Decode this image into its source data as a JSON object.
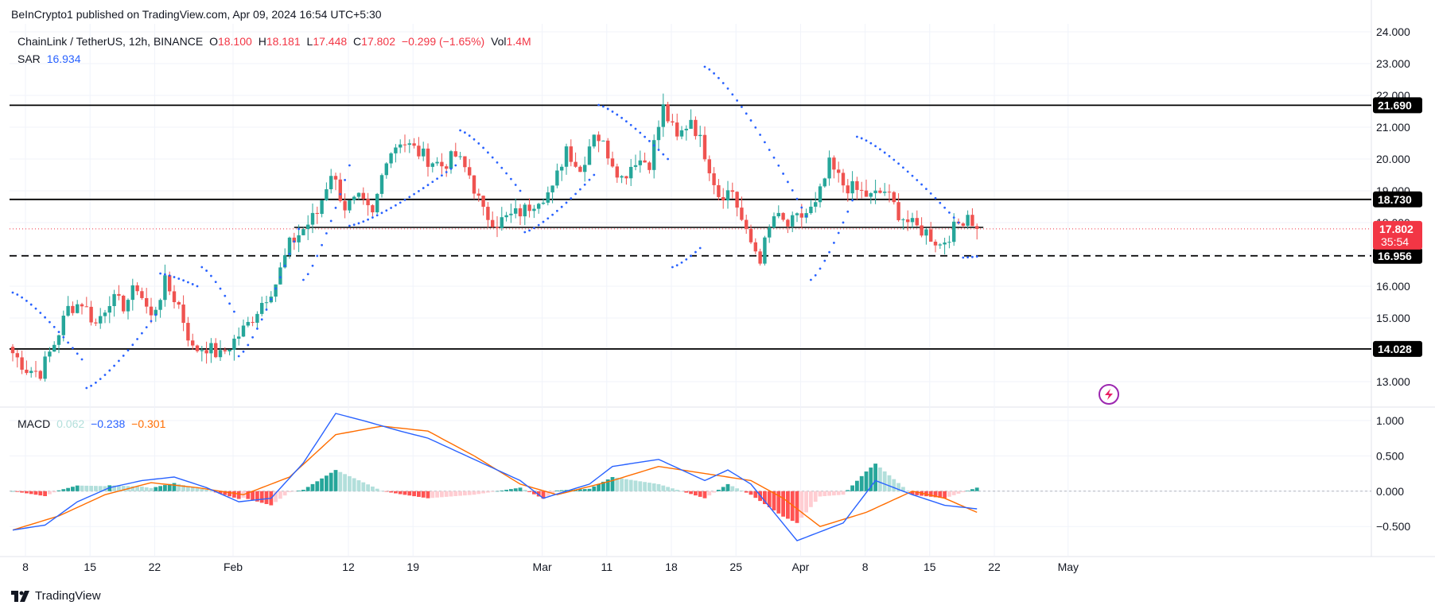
{
  "header": {
    "published": "BeInCrypto1 published on TradingView.com, Apr 09, 2024 16:54 UTC+5:30"
  },
  "legend": {
    "symbol": "ChainLink / TetherUS, 12h, BINANCE",
    "o_label": "O",
    "o": "18.100",
    "h_label": "H",
    "h": "18.181",
    "l_label": "L",
    "l": "17.448",
    "c_label": "C",
    "c": "17.802",
    "change": "−0.299 (−1.65%)",
    "vol_label": "Vol",
    "vol": "1.4M",
    "sar_label": "SAR",
    "sar": "16.934",
    "macd_label": "MACD",
    "macd_hist": "0.062",
    "macd_line": "−0.238",
    "macd_signal": "−0.301"
  },
  "footer": {
    "brand": "TradingView"
  },
  "colors": {
    "up": "#26a69a",
    "down": "#ef5350",
    "sar": "#2962ff",
    "macd": "#2962ff",
    "signal": "#ff6d00",
    "hist_up": "#26a69a",
    "hist_up_light": "#b2dfdb",
    "hist_down": "#ff5252",
    "hist_down_light": "#ffcdd2",
    "level": "#000000",
    "current": "#f23645"
  },
  "chart_data": {
    "type": "candlestick",
    "price_axis": {
      "ticks": [
        "24.000",
        "23.000",
        "22.000",
        "21.000",
        "20.000",
        "19.000",
        "18.000",
        "17.000",
        "16.000",
        "15.000",
        "14.000",
        "13.000"
      ],
      "range": [
        12.5,
        24.0
      ]
    },
    "macd_axis": {
      "ticks": [
        "1.000",
        "0.500",
        "0.000",
        "−0.500"
      ],
      "range": [
        -0.7,
        1.1
      ]
    },
    "x_ticks": [
      "8",
      "15",
      "22",
      "Feb",
      "12",
      "19",
      "Mar",
      "11",
      "18",
      "25",
      "Apr",
      "8",
      "15",
      "22",
      "May"
    ],
    "levels": [
      {
        "value": 21.69,
        "label": "21.690",
        "style": "solid"
      },
      {
        "value": 18.73,
        "label": "18.730",
        "style": "solid"
      },
      {
        "value": 16.956,
        "label": "16.956",
        "style": "dashed"
      },
      {
        "value": 14.028,
        "label": "14.028",
        "style": "solid"
      }
    ],
    "current_price": {
      "value": 17.802,
      "label": "17.802",
      "countdown": "35:54"
    },
    "price_waypoints": [
      [
        0,
        13.9
      ],
      [
        3,
        13.4
      ],
      [
        6,
        13.3
      ],
      [
        9,
        14.2
      ],
      [
        12,
        15.3
      ],
      [
        15,
        15.5
      ],
      [
        18,
        14.8
      ],
      [
        21,
        15.6
      ],
      [
        24,
        15.4
      ],
      [
        27,
        16.0
      ],
      [
        30,
        15.0
      ],
      [
        33,
        16.1
      ],
      [
        36,
        15.4
      ],
      [
        39,
        14.0
      ],
      [
        42,
        14.1
      ],
      [
        45,
        13.8
      ],
      [
        48,
        14.3
      ],
      [
        51,
        14.8
      ],
      [
        54,
        15.5
      ],
      [
        57,
        16.1
      ],
      [
        60,
        17.3
      ],
      [
        63,
        17.8
      ],
      [
        66,
        18.3
      ],
      [
        69,
        19.6
      ],
      [
        72,
        18.5
      ],
      [
        75,
        18.7
      ],
      [
        78,
        18.2
      ],
      [
        81,
        20.1
      ],
      [
        84,
        20.6
      ],
      [
        87,
        20.3
      ],
      [
        90,
        20.0
      ],
      [
        93,
        19.8
      ],
      [
        96,
        20.1
      ],
      [
        99,
        19.5
      ],
      [
        102,
        18.3
      ],
      [
        105,
        18.0
      ],
      [
        108,
        18.2
      ],
      [
        111,
        18.4
      ],
      [
        114,
        18.8
      ],
      [
        117,
        19.0
      ],
      [
        120,
        20.4
      ],
      [
        123,
        19.6
      ],
      [
        126,
        20.9
      ],
      [
        129,
        20.2
      ],
      [
        132,
        19.4
      ],
      [
        135,
        20.0
      ],
      [
        138,
        19.9
      ],
      [
        141,
        21.6
      ],
      [
        144,
        20.6
      ],
      [
        147,
        21.3
      ],
      [
        150,
        20.2
      ],
      [
        153,
        18.9
      ],
      [
        156,
        19.0
      ],
      [
        159,
        17.6
      ],
      [
        162,
        16.9
      ],
      [
        165,
        18.2
      ],
      [
        168,
        17.9
      ],
      [
        171,
        18.2
      ],
      [
        174,
        18.5
      ],
      [
        177,
        19.8
      ],
      [
        180,
        19.2
      ],
      [
        183,
        19.0
      ],
      [
        186,
        18.8
      ],
      [
        189,
        19.0
      ],
      [
        192,
        18.3
      ],
      [
        195,
        17.9
      ],
      [
        198,
        17.7
      ],
      [
        201,
        17.3
      ],
      [
        204,
        17.8
      ],
      [
        207,
        18.3
      ],
      [
        209,
        17.8
      ]
    ],
    "sar_segments": [
      {
        "side": "above",
        "from": 0,
        "to": 15,
        "start": 15.8,
        "end": 13.7
      },
      {
        "side": "below",
        "from": 16,
        "to": 31,
        "start": 12.8,
        "end": 15.1
      },
      {
        "side": "above",
        "from": 32,
        "to": 40,
        "start": 16.4,
        "end": 16.0
      },
      {
        "side": "above",
        "from": 41,
        "to": 48,
        "start": 16.6,
        "end": 15.2
      },
      {
        "side": "below",
        "from": 49,
        "to": 62,
        "start": 13.8,
        "end": 17.8
      },
      {
        "side": "below",
        "from": 63,
        "to": 73,
        "start": 16.2,
        "end": 19.8
      },
      {
        "side": "below",
        "from": 73,
        "to": 96,
        "start": 17.9,
        "end": 19.8
      },
      {
        "side": "above",
        "from": 97,
        "to": 110,
        "start": 20.9,
        "end": 19.0
      },
      {
        "side": "below",
        "from": 111,
        "to": 126,
        "start": 17.7,
        "end": 19.5
      },
      {
        "side": "above",
        "from": 127,
        "to": 142,
        "start": 21.7,
        "end": 20.0
      },
      {
        "side": "below",
        "from": 143,
        "to": 149,
        "start": 16.6,
        "end": 17.2
      },
      {
        "side": "above",
        "from": 150,
        "to": 172,
        "start": 22.9,
        "end": 18.2
      },
      {
        "side": "below",
        "from": 173,
        "to": 182,
        "start": 16.2,
        "end": 18.7
      },
      {
        "side": "above",
        "from": 183,
        "to": 205,
        "start": 20.7,
        "end": 18.0
      },
      {
        "side": "below",
        "from": 206,
        "to": 209,
        "start": 16.9,
        "end": 16.934
      }
    ],
    "macd_waypoints": [
      [
        0,
        -0.55
      ],
      [
        7,
        -0.48
      ],
      [
        14,
        -0.15
      ],
      [
        21,
        0.05
      ],
      [
        28,
        0.15
      ],
      [
        35,
        0.2
      ],
      [
        42,
        0.05
      ],
      [
        49,
        -0.15
      ],
      [
        56,
        -0.1
      ],
      [
        63,
        0.4
      ],
      [
        70,
        1.1
      ],
      [
        77,
        0.98
      ],
      [
        84,
        0.85
      ],
      [
        90,
        0.75
      ],
      [
        100,
        0.45
      ],
      [
        110,
        0.15
      ],
      [
        115,
        -0.1
      ],
      [
        125,
        0.1
      ],
      [
        130,
        0.35
      ],
      [
        140,
        0.45
      ],
      [
        150,
        0.15
      ],
      [
        155,
        0.3
      ],
      [
        160,
        0.1
      ],
      [
        165,
        -0.3
      ],
      [
        170,
        -0.7
      ],
      [
        180,
        -0.45
      ],
      [
        187,
        0.15
      ],
      [
        195,
        -0.05
      ],
      [
        202,
        -0.2
      ],
      [
        209,
        -0.25
      ]
    ],
    "signal_waypoints": [
      [
        0,
        -0.55
      ],
      [
        10,
        -0.35
      ],
      [
        20,
        -0.05
      ],
      [
        30,
        0.12
      ],
      [
        40,
        0.05
      ],
      [
        50,
        -0.05
      ],
      [
        60,
        0.2
      ],
      [
        70,
        0.8
      ],
      [
        80,
        0.92
      ],
      [
        90,
        0.85
      ],
      [
        100,
        0.5
      ],
      [
        110,
        0.1
      ],
      [
        118,
        -0.05
      ],
      [
        130,
        0.15
      ],
      [
        140,
        0.35
      ],
      [
        150,
        0.25
      ],
      [
        160,
        0.15
      ],
      [
        167,
        -0.1
      ],
      [
        175,
        -0.5
      ],
      [
        185,
        -0.3
      ],
      [
        195,
        0.0
      ],
      [
        202,
        -0.1
      ],
      [
        209,
        -0.3
      ]
    ]
  }
}
